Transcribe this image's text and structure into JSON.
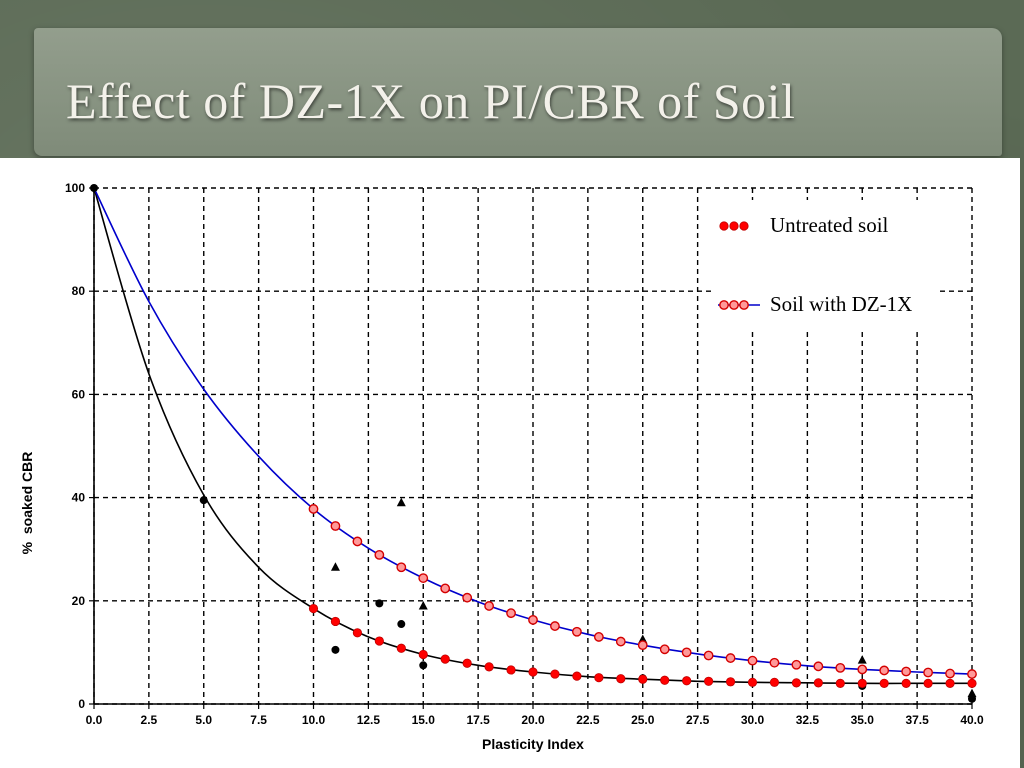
{
  "slide": {
    "title": "Effect of DZ-1X on PI/CBR of Soil"
  },
  "chart_data": {
    "type": "scatter",
    "title": "",
    "xlabel": "Plasticity Index",
    "ylabel": "%  soaked CBR",
    "xlim": [
      0,
      40
    ],
    "ylim": [
      0,
      100
    ],
    "xticks": [
      "0.0",
      "2.5",
      "5.0",
      "7.5",
      "10.0",
      "12.5",
      "15.0",
      "17.5",
      "20.0",
      "22.5",
      "25.0",
      "27.5",
      "30.0",
      "32.5",
      "35.0",
      "37.5",
      "40.0"
    ],
    "yticks": [
      "0",
      "20",
      "40",
      "60",
      "80",
      "100"
    ],
    "grid": true,
    "legend_position": "top-right",
    "colors": {
      "untreated": "#ff0000",
      "treated_fill": "#ff9999",
      "treated_edge": "#d40000",
      "curve_untreated": "#000000",
      "curve_treated": "#0000cc",
      "observed": "#000000"
    },
    "series": [
      {
        "name": "Untreated soil",
        "marker": "red-dot",
        "x": [
          10,
          11,
          12,
          13,
          14,
          15,
          16,
          17,
          18,
          19,
          20,
          21,
          22,
          23,
          24,
          25,
          26,
          27,
          28,
          29,
          30,
          31,
          32,
          33,
          34,
          35,
          36,
          37,
          38,
          39,
          40
        ],
        "y": [
          18.5,
          16.0,
          13.8,
          12.2,
          10.8,
          9.6,
          8.7,
          7.9,
          7.2,
          6.6,
          6.2,
          5.8,
          5.4,
          5.1,
          4.9,
          4.8,
          4.6,
          4.5,
          4.4,
          4.3,
          4.2,
          4.2,
          4.1,
          4.1,
          4.0,
          4.0,
          4.0,
          4.0,
          4.0,
          4.0,
          4.0
        ]
      },
      {
        "name": "Soil with DZ-1X",
        "marker": "red-ring",
        "x": [
          10,
          11,
          12,
          13,
          14,
          15,
          16,
          17,
          18,
          19,
          20,
          21,
          22,
          23,
          24,
          25,
          26,
          27,
          28,
          29,
          30,
          31,
          32,
          33,
          34,
          35,
          36,
          37,
          38,
          39,
          40
        ],
        "y": [
          37.8,
          34.5,
          31.5,
          28.9,
          26.5,
          24.4,
          22.4,
          20.6,
          19.0,
          17.6,
          16.3,
          15.1,
          14.0,
          13.0,
          12.1,
          11.4,
          10.6,
          10.0,
          9.4,
          8.9,
          8.4,
          8.0,
          7.6,
          7.3,
          7.0,
          6.7,
          6.5,
          6.3,
          6.1,
          5.9,
          5.8
        ]
      },
      {
        "name": "",
        "marker": "black-circle",
        "x": [
          0,
          5,
          11,
          13,
          14,
          15,
          25,
          35,
          40
        ],
        "y": [
          100,
          39.5,
          10.5,
          19.5,
          15.5,
          7.5,
          5.0,
          3.5,
          1.0
        ]
      },
      {
        "name": "",
        "marker": "black-triangle",
        "x": [
          11,
          14,
          15,
          25,
          35,
          40
        ],
        "y": [
          26.5,
          39.0,
          19.0,
          12.5,
          8.5,
          2.0
        ]
      }
    ],
    "curves": [
      {
        "name": "",
        "color": "#000000",
        "x": [
          0,
          2.5,
          5,
          7.5,
          10,
          12.5,
          15,
          17.5,
          20,
          22.5,
          25,
          27.5,
          30,
          32.5,
          35,
          37.5,
          40
        ],
        "y": [
          100,
          64,
          40.5,
          26.5,
          18.5,
          13,
          9.6,
          7.5,
          6.2,
          5.3,
          4.8,
          4.4,
          4.2,
          4.1,
          4.0,
          4.0,
          4.0
        ]
      },
      {
        "name": "",
        "color": "#0000cc",
        "x": [
          0,
          2.5,
          5,
          7.5,
          10,
          12.5,
          15,
          17.5,
          20,
          22.5,
          25,
          27.5,
          30,
          32.5,
          35,
          37.5,
          40
        ],
        "y": [
          100,
          78,
          61,
          48,
          37.8,
          30.2,
          24.4,
          19.8,
          16.3,
          13.5,
          11.4,
          9.7,
          8.4,
          7.4,
          6.7,
          6.2,
          5.8
        ]
      }
    ]
  }
}
